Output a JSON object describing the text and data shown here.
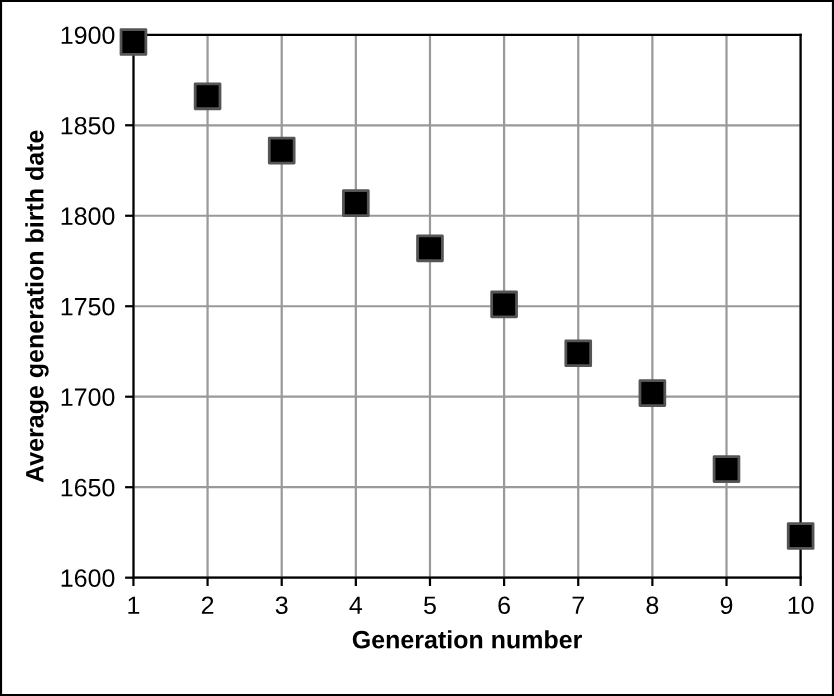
{
  "chart_data": {
    "type": "scatter",
    "xlabel": "Generation number",
    "ylabel": "Average generation birth date",
    "x": [
      1,
      2,
      3,
      4,
      5,
      6,
      7,
      8,
      9,
      10
    ],
    "series": [
      {
        "color": "#000000",
        "values": [
          1896,
          1866,
          1836,
          1807,
          1782,
          1751,
          1724,
          1702,
          1660,
          1623
        ]
      }
    ],
    "xlim": [
      1,
      10
    ],
    "xticks": [
      1,
      2,
      3,
      4,
      5,
      6,
      7,
      8,
      9,
      10
    ],
    "ylim": [
      1600,
      1900
    ],
    "yticks": [
      1600,
      1650,
      1700,
      1750,
      1800,
      1850,
      1900
    ],
    "grid": true,
    "marker": "square"
  }
}
